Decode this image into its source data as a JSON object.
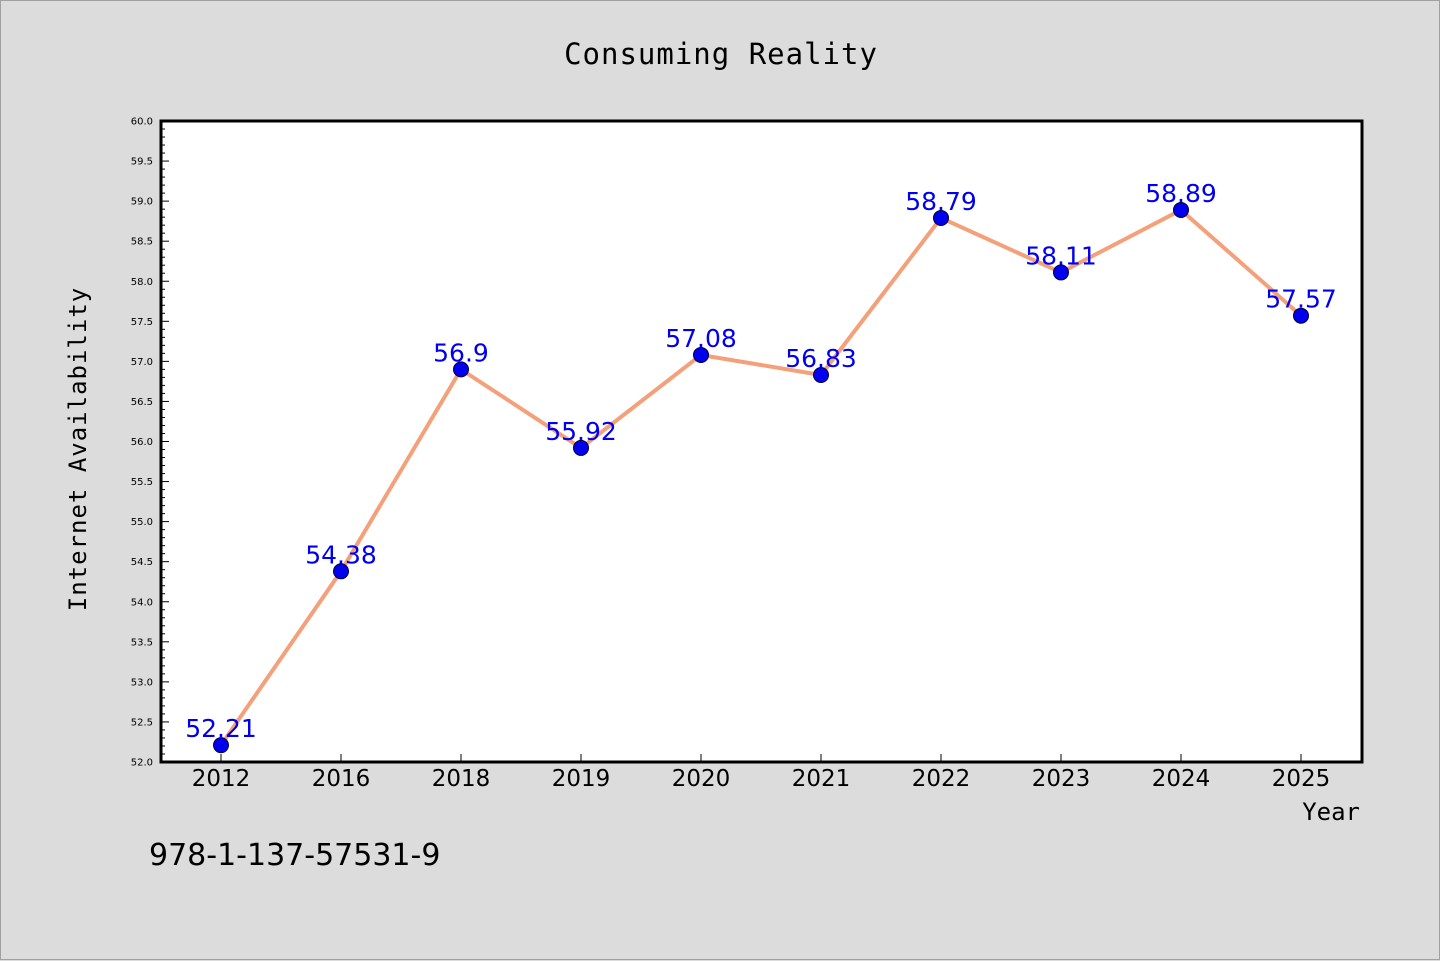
{
  "chart_data": {
    "type": "line",
    "title": "Consuming Reality",
    "xlabel": "Year",
    "ylabel": "Internet Availability",
    "categories": [
      "2012",
      "2016",
      "2018",
      "2019",
      "2020",
      "2021",
      "2022",
      "2023",
      "2024",
      "2025"
    ],
    "series": [
      {
        "values": [
          52.21,
          54.38,
          56.9,
          55.92,
          57.08,
          56.83,
          58.79,
          58.11,
          58.89,
          57.57
        ],
        "labels": [
          "52.21",
          "54.38",
          "56.9",
          "55.92",
          "57.08",
          "56.83",
          "58.79",
          "58.11",
          "58.89",
          "57.57"
        ]
      }
    ],
    "ylim": [
      52.0,
      60.0
    ],
    "yticks": [
      "52.0",
      "52.5",
      "53.0",
      "53.5",
      "54.0",
      "54.5",
      "55.0",
      "55.5",
      "56.0",
      "56.5",
      "57.0",
      "57.5",
      "58.0",
      "58.5",
      "59.0",
      "59.5",
      "60.0"
    ],
    "grid": false,
    "legend": "none",
    "colors": {
      "line": "#f4a07a",
      "marker": "#0000ee",
      "data_label": "#0000ee",
      "plot_background": "#ffffff",
      "figure_background": "#dcdcdc"
    }
  },
  "footnote": "978-1-137-57531-9"
}
